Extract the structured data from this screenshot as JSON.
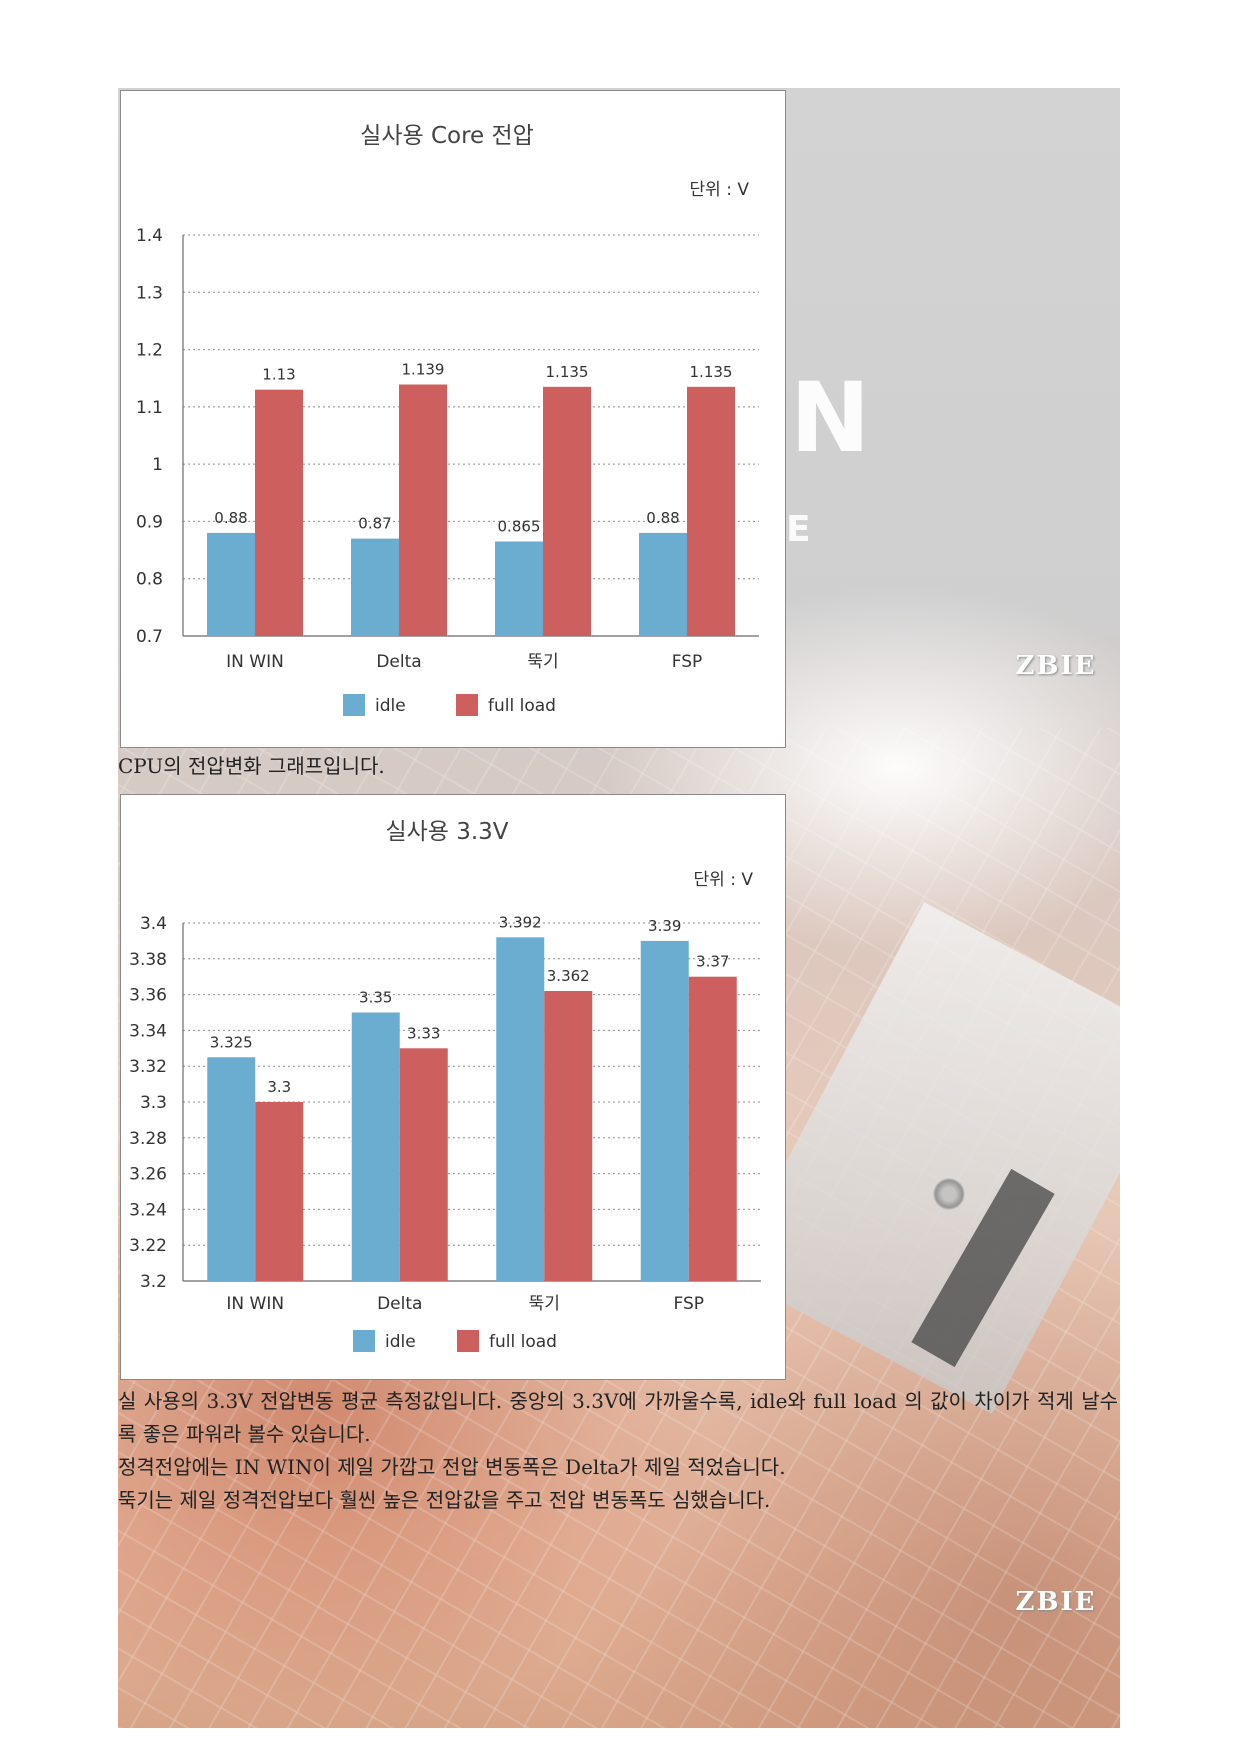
{
  "watermark": {
    "logo_text": "ZBIE"
  },
  "colors": {
    "idle": "#6aadd0",
    "full_load": "#cd5f5f"
  },
  "chart_data": [
    {
      "type": "bar",
      "title": "실사용 Core 전압",
      "unit_label": "단위 : V",
      "categories": [
        "IN WIN",
        "Delta",
        "뚝기",
        "FSP"
      ],
      "series": [
        {
          "name": "idle",
          "values": [
            0.88,
            0.87,
            0.865,
            0.88
          ],
          "labels": [
            "0.88",
            "0.87",
            "0.865",
            "0.88"
          ]
        },
        {
          "name": "full load",
          "values": [
            1.13,
            1.139,
            1.135,
            1.135
          ],
          "labels": [
            "1.13",
            "1.139",
            "1.135",
            "1.135"
          ]
        }
      ],
      "ylim": [
        0.7,
        1.4
      ],
      "yticks": [
        1.4,
        1.3,
        1.2,
        1.1,
        1,
        0.9,
        0.8,
        0.7
      ],
      "ytick_labels": [
        "1.4",
        "1.3",
        "1.2",
        "1.1",
        "1",
        "0.9",
        "0.8",
        "0.7"
      ],
      "grid": true,
      "legend": "bottom"
    },
    {
      "type": "bar",
      "title": "실사용 3.3V",
      "unit_label": "단위 : V",
      "categories": [
        "IN WIN",
        "Delta",
        "뚝기",
        "FSP"
      ],
      "series": [
        {
          "name": "idle",
          "values": [
            3.325,
            3.35,
            3.392,
            3.39
          ],
          "labels": [
            "3.325",
            "3.35",
            "3.392",
            "3.39"
          ]
        },
        {
          "name": "full load",
          "values": [
            3.3,
            3.33,
            3.362,
            3.37
          ],
          "labels": [
            "3.3",
            "3.33",
            "3.362",
            "3.37"
          ]
        }
      ],
      "ylim": [
        3.2,
        3.4
      ],
      "yticks": [
        3.4,
        3.38,
        3.36,
        3.34,
        3.32,
        3.3,
        3.28,
        3.26,
        3.24,
        3.22,
        3.2
      ],
      "ytick_labels": [
        "3.4",
        "3.38",
        "3.36",
        "3.34",
        "3.32",
        "3.3",
        "3.28",
        "3.26",
        "3.24",
        "3.22",
        "3.2"
      ],
      "grid": true,
      "legend": "bottom"
    }
  ],
  "captions": {
    "chart1_caption": "CPU의 전압변화 그래프입니다.",
    "paragraphs": [
      "실 사용의 3.3V 전압변동 평균 측정값입니다. 중앙의 3.3V에 가까울수록, idle와 full load 의 값이 차이가 적게 날수록 좋은 파워라 볼수 있습니다.",
      "정격전압에는 IN WIN이 제일 가깝고 전압 변동폭은 Delta가 제일 적었습니다.",
      "뚝기는 제일 정격전압보다 훨씬 높은 전압값을 주고 전압 변동폭도 심했습니다."
    ]
  }
}
